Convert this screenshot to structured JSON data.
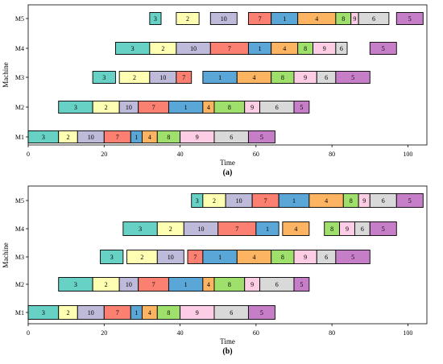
{
  "chart_data": [
    {
      "type": "gantt",
      "panel_label": "(a)",
      "xlabel": "Time",
      "ylabel": "Machine",
      "xlim": [
        0,
        105
      ],
      "xticks": [
        0,
        20,
        40,
        60,
        80,
        100
      ],
      "machines": [
        "M1",
        "M2",
        "M3",
        "M4",
        "M5"
      ],
      "tasks": [
        {
          "machine": "M1",
          "job": "3",
          "start": 0,
          "end": 8
        },
        {
          "machine": "M1",
          "job": "2",
          "start": 8,
          "end": 13
        },
        {
          "machine": "M1",
          "job": "10",
          "start": 13,
          "end": 20
        },
        {
          "machine": "M1",
          "job": "7",
          "start": 20,
          "end": 27
        },
        {
          "machine": "M1",
          "job": "1",
          "start": 27,
          "end": 30
        },
        {
          "machine": "M1",
          "job": "4",
          "start": 30,
          "end": 34
        },
        {
          "machine": "M1",
          "job": "8",
          "start": 34,
          "end": 40
        },
        {
          "machine": "M1",
          "job": "9",
          "start": 40,
          "end": 49
        },
        {
          "machine": "M1",
          "job": "6",
          "start": 49,
          "end": 58
        },
        {
          "machine": "M1",
          "job": "5",
          "start": 58,
          "end": 65
        },
        {
          "machine": "M2",
          "job": "3",
          "start": 8,
          "end": 17
        },
        {
          "machine": "M2",
          "job": "2",
          "start": 17,
          "end": 24
        },
        {
          "machine": "M2",
          "job": "10",
          "start": 24,
          "end": 29
        },
        {
          "machine": "M2",
          "job": "7",
          "start": 29,
          "end": 37
        },
        {
          "machine": "M2",
          "job": "1",
          "start": 37,
          "end": 46
        },
        {
          "machine": "M2",
          "job": "4",
          "start": 46,
          "end": 49
        },
        {
          "machine": "M2",
          "job": "8",
          "start": 49,
          "end": 57
        },
        {
          "machine": "M2",
          "job": "9",
          "start": 57,
          "end": 61
        },
        {
          "machine": "M2",
          "job": "6",
          "start": 61,
          "end": 70
        },
        {
          "machine": "M2",
          "job": "5",
          "start": 70,
          "end": 74
        },
        {
          "machine": "M3",
          "job": "3",
          "start": 17,
          "end": 23
        },
        {
          "machine": "M3",
          "job": "2",
          "start": 24,
          "end": 32
        },
        {
          "machine": "M3",
          "job": "10",
          "start": 32,
          "end": 39
        },
        {
          "machine": "M3",
          "job": "7",
          "start": 39,
          "end": 43
        },
        {
          "machine": "M3",
          "job": "1",
          "start": 46,
          "end": 55
        },
        {
          "machine": "M3",
          "job": "4",
          "start": 55,
          "end": 64
        },
        {
          "machine": "M3",
          "job": "8",
          "start": 64,
          "end": 70
        },
        {
          "machine": "M3",
          "job": "9",
          "start": 70,
          "end": 76
        },
        {
          "machine": "M3",
          "job": "6",
          "start": 76,
          "end": 81
        },
        {
          "machine": "M3",
          "job": "5",
          "start": 81,
          "end": 90
        },
        {
          "machine": "M4",
          "job": "3",
          "start": 23,
          "end": 32
        },
        {
          "machine": "M4",
          "job": "2",
          "start": 32,
          "end": 39
        },
        {
          "machine": "M4",
          "job": "10",
          "start": 39,
          "end": 48
        },
        {
          "machine": "M4",
          "job": "7",
          "start": 48,
          "end": 58
        },
        {
          "machine": "M4",
          "job": "1",
          "start": 58,
          "end": 64
        },
        {
          "machine": "M4",
          "job": "4",
          "start": 64,
          "end": 71
        },
        {
          "machine": "M4",
          "job": "8",
          "start": 71,
          "end": 75
        },
        {
          "machine": "M4",
          "job": "9",
          "start": 75,
          "end": 81
        },
        {
          "machine": "M4",
          "job": "6",
          "start": 81,
          "end": 84
        },
        {
          "machine": "M4",
          "job": "5",
          "start": 90,
          "end": 97
        },
        {
          "machine": "M5",
          "job": "3",
          "start": 32,
          "end": 35
        },
        {
          "machine": "M5",
          "job": "2",
          "start": 39,
          "end": 45
        },
        {
          "machine": "M5",
          "job": "10",
          "start": 48,
          "end": 55
        },
        {
          "machine": "M5",
          "job": "7",
          "start": 58,
          "end": 64
        },
        {
          "machine": "M5",
          "job": "1",
          "start": 64,
          "end": 71
        },
        {
          "machine": "M5",
          "job": "4",
          "start": 71,
          "end": 81
        },
        {
          "machine": "M5",
          "job": "8",
          "start": 81,
          "end": 85
        },
        {
          "machine": "M5",
          "job": "9",
          "start": 85,
          "end": 87
        },
        {
          "machine": "M5",
          "job": "6",
          "start": 87,
          "end": 95
        },
        {
          "machine": "M5",
          "job": "5",
          "start": 97,
          "end": 104
        }
      ]
    },
    {
      "type": "gantt",
      "panel_label": "(b)",
      "xlabel": "Time",
      "ylabel": "Machine",
      "xlim": [
        0,
        105
      ],
      "xticks": [
        0,
        20,
        40,
        60,
        80,
        100
      ],
      "machines": [
        "M1",
        "M2",
        "M3",
        "M4",
        "M5"
      ],
      "tasks": [
        {
          "machine": "M1",
          "job": "3",
          "start": 0,
          "end": 8
        },
        {
          "machine": "M1",
          "job": "2",
          "start": 8,
          "end": 13
        },
        {
          "machine": "M1",
          "job": "10",
          "start": 13,
          "end": 20
        },
        {
          "machine": "M1",
          "job": "7",
          "start": 20,
          "end": 27
        },
        {
          "machine": "M1",
          "job": "1",
          "start": 27,
          "end": 30
        },
        {
          "machine": "M1",
          "job": "4",
          "start": 30,
          "end": 34
        },
        {
          "machine": "M1",
          "job": "8",
          "start": 34,
          "end": 40
        },
        {
          "machine": "M1",
          "job": "9",
          "start": 40,
          "end": 49
        },
        {
          "machine": "M1",
          "job": "6",
          "start": 49,
          "end": 58
        },
        {
          "machine": "M1",
          "job": "5",
          "start": 58,
          "end": 65
        },
        {
          "machine": "M2",
          "job": "3",
          "start": 8,
          "end": 17
        },
        {
          "machine": "M2",
          "job": "2",
          "start": 17,
          "end": 24
        },
        {
          "machine": "M2",
          "job": "10",
          "start": 24,
          "end": 29
        },
        {
          "machine": "M2",
          "job": "7",
          "start": 29,
          "end": 37
        },
        {
          "machine": "M2",
          "job": "1",
          "start": 37,
          "end": 46
        },
        {
          "machine": "M2",
          "job": "4",
          "start": 46,
          "end": 49
        },
        {
          "machine": "M2",
          "job": "8",
          "start": 49,
          "end": 57
        },
        {
          "machine": "M2",
          "job": "9",
          "start": 57,
          "end": 61
        },
        {
          "machine": "M2",
          "job": "6",
          "start": 61,
          "end": 70
        },
        {
          "machine": "M2",
          "job": "5",
          "start": 70,
          "end": 74
        },
        {
          "machine": "M3",
          "job": "3",
          "start": 19,
          "end": 25
        },
        {
          "machine": "M3",
          "job": "2",
          "start": 26,
          "end": 34
        },
        {
          "machine": "M3",
          "job": "10",
          "start": 34,
          "end": 41
        },
        {
          "machine": "M3",
          "job": "7",
          "start": 42,
          "end": 46
        },
        {
          "machine": "M3",
          "job": "1",
          "start": 46,
          "end": 55
        },
        {
          "machine": "M3",
          "job": "4",
          "start": 55,
          "end": 64
        },
        {
          "machine": "M3",
          "job": "8",
          "start": 64,
          "end": 70
        },
        {
          "machine": "M3",
          "job": "9",
          "start": 70,
          "end": 76
        },
        {
          "machine": "M3",
          "job": "6",
          "start": 76,
          "end": 81
        },
        {
          "machine": "M3",
          "job": "5",
          "start": 81,
          "end": 90
        },
        {
          "machine": "M4",
          "job": "3",
          "start": 25,
          "end": 34
        },
        {
          "machine": "M4",
          "job": "2",
          "start": 34,
          "end": 41
        },
        {
          "machine": "M4",
          "job": "10",
          "start": 41,
          "end": 50
        },
        {
          "machine": "M4",
          "job": "7",
          "start": 50,
          "end": 60
        },
        {
          "machine": "M4",
          "job": "1",
          "start": 60,
          "end": 66
        },
        {
          "machine": "M4",
          "job": "4",
          "start": 67,
          "end": 74
        },
        {
          "machine": "M4",
          "job": "8",
          "start": 78,
          "end": 82
        },
        {
          "machine": "M4",
          "job": "9",
          "start": 82,
          "end": 86
        },
        {
          "machine": "M4",
          "job": "6",
          "start": 86,
          "end": 90
        },
        {
          "machine": "M4",
          "job": "5",
          "start": 90,
          "end": 97
        },
        {
          "machine": "M5",
          "job": "3",
          "start": 43,
          "end": 46
        },
        {
          "machine": "M5",
          "job": "2",
          "start": 46,
          "end": 52
        },
        {
          "machine": "M5",
          "job": "10",
          "start": 52,
          "end": 59
        },
        {
          "machine": "M5",
          "job": "7",
          "start": 59,
          "end": 66
        },
        {
          "machine": "M5",
          "job": "1",
          "start": 66,
          "end": 74
        },
        {
          "machine": "M5",
          "job": "4",
          "start": 74,
          "end": 83
        },
        {
          "machine": "M5",
          "job": "8",
          "start": 83,
          "end": 87
        },
        {
          "machine": "M5",
          "job": "9",
          "start": 87,
          "end": 90
        },
        {
          "machine": "M5",
          "job": "6",
          "start": 90,
          "end": 97
        },
        {
          "machine": "M5",
          "job": "5",
          "start": 97,
          "end": 104
        }
      ]
    }
  ],
  "job_colors": {
    "1": "#5aa6d6",
    "2": "#ffffb3",
    "3": "#66d1c4",
    "4": "#fdb462",
    "5": "#c77ec9",
    "6": "#d9d9d9",
    "7": "#fb8072",
    "8": "#9ee06b",
    "9": "#fccde5",
    "10": "#bebada"
  }
}
